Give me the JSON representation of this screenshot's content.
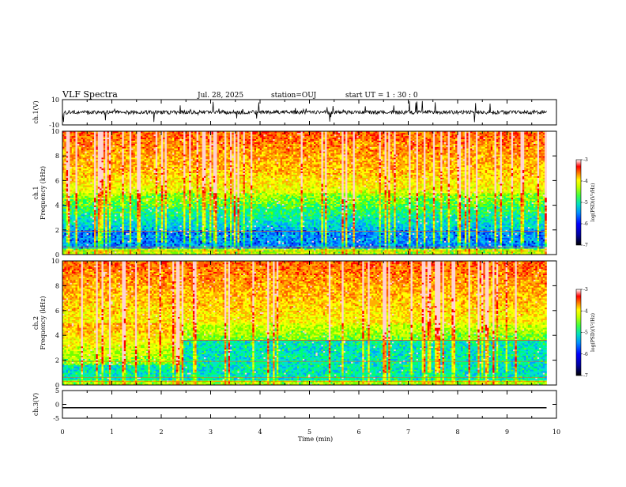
{
  "header": {
    "title": "VLF Spectra",
    "date": "Jul. 28, 2025",
    "station": "station=OUJ",
    "start_ut": "start UT =  1 : 30 : 0"
  },
  "chart_data": [
    {
      "type": "line",
      "panel": "ch1-waveform",
      "ylabel": "ch.1(V)",
      "ylim": [
        -10,
        10
      ],
      "yticks": [
        "10",
        "-10"
      ],
      "xlim": [
        0,
        10
      ],
      "noise_amplitude_v": 3,
      "series_color": "#000000"
    },
    {
      "type": "heatmap",
      "panel": "ch1-spectrogram",
      "ylabel": [
        "ch.1",
        "Frequency (kHz)"
      ],
      "ylim": [
        0,
        10
      ],
      "yticks": [
        "0",
        "2",
        "4",
        "6",
        "8",
        "10"
      ],
      "xlim": [
        0,
        10
      ],
      "data_end_min": 9.8,
      "colorbar": {
        "label": "log(PSD)(V²/Hz)",
        "ticks": [
          "-3",
          "-4",
          "-5",
          "-6",
          "-7"
        ],
        "range": [
          -7,
          -3
        ]
      }
    },
    {
      "type": "heatmap",
      "panel": "ch2-spectrogram",
      "ylabel": [
        "ch.2",
        "Frequency (kHz)"
      ],
      "ylim": [
        0,
        10
      ],
      "yticks": [
        "0",
        "2",
        "4",
        "6",
        "8",
        "10"
      ],
      "xlim": [
        0,
        10
      ],
      "data_end_min": 9.8,
      "horizontal_line_khz": 3.6,
      "colorbar": {
        "label": "log(PSD)(V²/Hz)",
        "ticks": [
          "-3",
          "-4",
          "-5",
          "-6",
          "-7"
        ],
        "range": [
          -7,
          -3
        ]
      }
    },
    {
      "type": "line",
      "panel": "ch3-waveform",
      "ylabel": "ch.3(V)",
      "ylim": [
        -5,
        5
      ],
      "yticks": [
        "5",
        "0",
        "-5"
      ],
      "xlim": [
        0,
        10
      ],
      "constant_value_v": -1.2,
      "series_color": "#000000"
    }
  ],
  "xaxis": {
    "label": "Time (min)",
    "ticks": [
      "0",
      "1",
      "2",
      "3",
      "4",
      "5",
      "6",
      "7",
      "8",
      "9",
      "10"
    ]
  },
  "colormap": [
    "#000080",
    "#0000ff",
    "#0080ff",
    "#00c0c0",
    "#00ff80",
    "#80ff00",
    "#ffff00",
    "#ff8000",
    "#ff0000",
    "#ffffff"
  ]
}
